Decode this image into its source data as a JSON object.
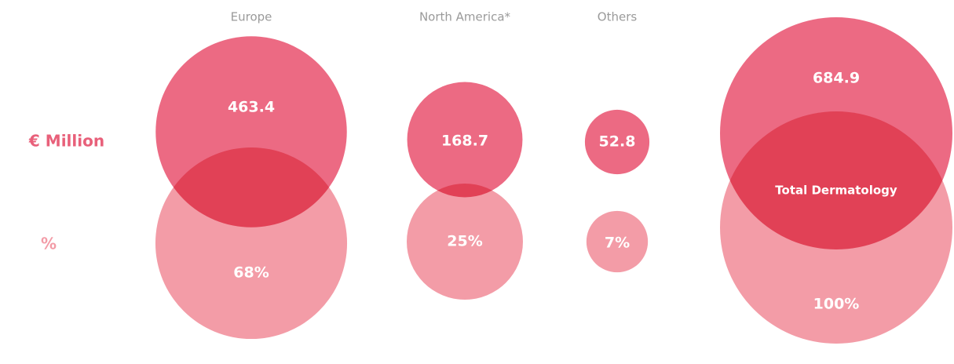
{
  "chart_data": {
    "type": "bubble",
    "categories": [
      "Europe",
      "North America*",
      "Others",
      null
    ],
    "series": [
      {
        "name": "€ Million",
        "color": "#ec6a83",
        "values": [
          463.4,
          168.7,
          52.8,
          684.9
        ]
      },
      {
        "name": "%",
        "color": "#f39ca7",
        "values": [
          68,
          25,
          7,
          100
        ],
        "value_labels": [
          "68%",
          "25%",
          "7%",
          "100%"
        ]
      }
    ],
    "annotations": [
      "Total Dermatology"
    ]
  }
}
